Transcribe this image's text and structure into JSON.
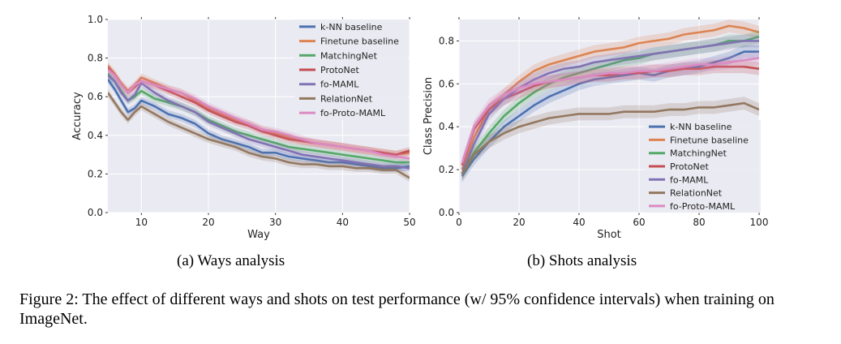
{
  "figure": {
    "caption": "Figure 2: The effect of different ways and shots on test performance (w/ 95% confidence intervals) when training on ImageNet."
  },
  "colors": {
    "k-NN baseline": "#4c72b0",
    "Finetune baseline": "#dd8452",
    "MatchingNet": "#55a868",
    "ProtoNet": "#c44e52",
    "fo-MAML": "#8172b3",
    "RelationNet": "#937860",
    "fo-Proto-MAML": "#da8bc3",
    "plot_bg": "#eaeaf2"
  },
  "chart_data": [
    {
      "type": "line",
      "subcaption": "(a)  Ways analysis",
      "xlabel": "Way",
      "ylabel": "Accuracy",
      "xlim": [
        5,
        50
      ],
      "ylim": [
        0,
        1.0
      ],
      "xticks": [
        10,
        20,
        30,
        40,
        50
      ],
      "yticks": [
        0.0,
        0.2,
        0.4,
        0.6,
        0.8,
        1.0
      ],
      "ytick_labels": [
        "0.0",
        "0.2",
        "0.4",
        "0.6",
        "0.8",
        "1.0"
      ],
      "grid": true,
      "confidence_band": 0.02,
      "legend_position": "top-right",
      "series": [
        {
          "name": "k-NN baseline",
          "x": [
            5,
            6,
            7,
            8,
            9,
            10,
            12,
            14,
            16,
            18,
            20,
            22,
            24,
            26,
            28,
            30,
            32,
            34,
            36,
            38,
            40,
            42,
            44,
            46,
            48,
            50
          ],
          "y": [
            0.69,
            0.64,
            0.58,
            0.52,
            0.54,
            0.58,
            0.55,
            0.51,
            0.49,
            0.46,
            0.41,
            0.38,
            0.36,
            0.34,
            0.31,
            0.31,
            0.29,
            0.28,
            0.27,
            0.26,
            0.26,
            0.25,
            0.24,
            0.23,
            0.23,
            0.24
          ]
        },
        {
          "name": "Finetune baseline",
          "x": [
            5,
            6,
            7,
            8,
            9,
            10,
            12,
            14,
            16,
            18,
            20,
            22,
            24,
            26,
            28,
            30,
            32,
            34,
            36,
            38,
            40,
            42,
            44,
            46,
            48,
            50
          ],
          "y": [
            0.76,
            0.72,
            0.67,
            0.63,
            0.66,
            0.7,
            0.67,
            0.64,
            0.62,
            0.58,
            0.54,
            0.51,
            0.48,
            0.46,
            0.43,
            0.41,
            0.39,
            0.37,
            0.36,
            0.35,
            0.34,
            0.33,
            0.32,
            0.31,
            0.3,
            0.31
          ]
        },
        {
          "name": "MatchingNet",
          "x": [
            5,
            6,
            7,
            8,
            9,
            10,
            12,
            14,
            16,
            18,
            20,
            22,
            24,
            26,
            28,
            30,
            32,
            34,
            36,
            38,
            40,
            42,
            44,
            46,
            48,
            50
          ],
          "y": [
            0.72,
            0.68,
            0.63,
            0.58,
            0.6,
            0.63,
            0.59,
            0.57,
            0.55,
            0.52,
            0.48,
            0.45,
            0.42,
            0.4,
            0.38,
            0.36,
            0.34,
            0.33,
            0.32,
            0.31,
            0.3,
            0.29,
            0.28,
            0.27,
            0.26,
            0.26
          ]
        },
        {
          "name": "ProtoNet",
          "x": [
            5,
            6,
            7,
            8,
            9,
            10,
            12,
            14,
            16,
            18,
            20,
            22,
            24,
            26,
            28,
            30,
            32,
            34,
            36,
            38,
            40,
            42,
            44,
            46,
            48,
            50
          ],
          "y": [
            0.75,
            0.71,
            0.66,
            0.62,
            0.65,
            0.68,
            0.66,
            0.63,
            0.6,
            0.57,
            0.53,
            0.5,
            0.47,
            0.45,
            0.42,
            0.4,
            0.38,
            0.37,
            0.36,
            0.35,
            0.34,
            0.33,
            0.32,
            0.31,
            0.3,
            0.32
          ]
        },
        {
          "name": "fo-MAML",
          "x": [
            5,
            6,
            7,
            8,
            9,
            10,
            12,
            14,
            16,
            18,
            20,
            22,
            24,
            26,
            28,
            30,
            32,
            34,
            36,
            38,
            40,
            42,
            44,
            46,
            48,
            50
          ],
          "y": [
            0.71,
            0.68,
            0.62,
            0.58,
            0.61,
            0.67,
            0.62,
            0.58,
            0.55,
            0.52,
            0.47,
            0.44,
            0.41,
            0.38,
            0.36,
            0.34,
            0.32,
            0.3,
            0.29,
            0.28,
            0.27,
            0.26,
            0.25,
            0.24,
            0.24,
            0.23
          ]
        },
        {
          "name": "RelationNet",
          "x": [
            5,
            6,
            7,
            8,
            9,
            10,
            12,
            14,
            16,
            18,
            20,
            22,
            24,
            26,
            28,
            30,
            32,
            34,
            36,
            38,
            40,
            42,
            44,
            46,
            48,
            50
          ],
          "y": [
            0.62,
            0.57,
            0.52,
            0.48,
            0.52,
            0.55,
            0.51,
            0.47,
            0.44,
            0.41,
            0.38,
            0.36,
            0.34,
            0.31,
            0.29,
            0.28,
            0.26,
            0.25,
            0.25,
            0.24,
            0.24,
            0.23,
            0.23,
            0.22,
            0.22,
            0.18
          ]
        },
        {
          "name": "fo-Proto-MAML",
          "x": [
            5,
            6,
            7,
            8,
            9,
            10,
            12,
            14,
            16,
            18,
            20,
            22,
            24,
            26,
            28,
            30,
            32,
            34,
            36,
            38,
            40,
            42,
            44,
            46,
            48,
            50
          ],
          "y": [
            0.74,
            0.71,
            0.66,
            0.62,
            0.66,
            0.68,
            0.66,
            0.64,
            0.62,
            0.59,
            0.55,
            0.52,
            0.49,
            0.46,
            0.43,
            0.42,
            0.4,
            0.38,
            0.36,
            0.35,
            0.34,
            0.33,
            0.32,
            0.3,
            0.29,
            0.28
          ]
        }
      ]
    },
    {
      "type": "line",
      "subcaption": "(b)  Shots analysis",
      "xlabel": "Shot",
      "ylabel": "Class Precision",
      "xlim": [
        0,
        100
      ],
      "ylim": [
        0,
        0.9
      ],
      "xticks": [
        0,
        20,
        40,
        60,
        80,
        100
      ],
      "yticks": [
        0.0,
        0.2,
        0.4,
        0.6,
        0.8
      ],
      "ytick_labels": [
        "0.0",
        "0.2",
        "0.4",
        "0.6",
        "0.8"
      ],
      "grid": true,
      "confidence_band": 0.03,
      "legend_position": "bottom-right",
      "series": [
        {
          "name": "k-NN baseline",
          "x": [
            1,
            5,
            10,
            15,
            20,
            25,
            30,
            35,
            40,
            45,
            50,
            55,
            60,
            65,
            70,
            75,
            80,
            85,
            90,
            95,
            100
          ],
          "y": [
            0.17,
            0.25,
            0.33,
            0.4,
            0.45,
            0.5,
            0.54,
            0.57,
            0.6,
            0.62,
            0.63,
            0.64,
            0.65,
            0.64,
            0.66,
            0.67,
            0.68,
            0.7,
            0.72,
            0.75,
            0.75
          ]
        },
        {
          "name": "Finetune baseline",
          "x": [
            1,
            5,
            10,
            15,
            20,
            25,
            30,
            35,
            40,
            45,
            50,
            55,
            60,
            65,
            70,
            75,
            80,
            85,
            90,
            95,
            100
          ],
          "y": [
            0.2,
            0.35,
            0.48,
            0.55,
            0.61,
            0.66,
            0.69,
            0.71,
            0.73,
            0.75,
            0.76,
            0.77,
            0.79,
            0.8,
            0.81,
            0.83,
            0.84,
            0.85,
            0.87,
            0.86,
            0.84
          ]
        },
        {
          "name": "MatchingNet",
          "x": [
            1,
            5,
            10,
            15,
            20,
            25,
            30,
            35,
            40,
            45,
            50,
            55,
            60,
            65,
            70,
            75,
            80,
            85,
            90,
            95,
            100
          ],
          "y": [
            0.18,
            0.28,
            0.37,
            0.45,
            0.51,
            0.56,
            0.6,
            0.63,
            0.65,
            0.67,
            0.69,
            0.71,
            0.72,
            0.74,
            0.75,
            0.76,
            0.77,
            0.78,
            0.8,
            0.8,
            0.82
          ]
        },
        {
          "name": "ProtoNet",
          "x": [
            1,
            5,
            10,
            15,
            20,
            25,
            30,
            35,
            40,
            45,
            50,
            55,
            60,
            65,
            70,
            75,
            80,
            85,
            90,
            95,
            100
          ],
          "y": [
            0.22,
            0.39,
            0.48,
            0.53,
            0.56,
            0.59,
            0.61,
            0.62,
            0.63,
            0.64,
            0.64,
            0.65,
            0.65,
            0.66,
            0.66,
            0.67,
            0.67,
            0.68,
            0.68,
            0.68,
            0.67
          ]
        },
        {
          "name": "fo-MAML",
          "x": [
            1,
            5,
            10,
            15,
            20,
            25,
            30,
            35,
            40,
            45,
            50,
            55,
            60,
            65,
            70,
            75,
            80,
            85,
            90,
            95,
            100
          ],
          "y": [
            0.18,
            0.32,
            0.46,
            0.53,
            0.58,
            0.62,
            0.65,
            0.67,
            0.68,
            0.7,
            0.71,
            0.72,
            0.73,
            0.74,
            0.75,
            0.76,
            0.77,
            0.78,
            0.79,
            0.8,
            0.8
          ]
        },
        {
          "name": "RelationNet",
          "x": [
            1,
            5,
            10,
            15,
            20,
            25,
            30,
            35,
            40,
            45,
            50,
            55,
            60,
            65,
            70,
            75,
            80,
            85,
            90,
            95,
            100
          ],
          "y": [
            0.18,
            0.27,
            0.33,
            0.37,
            0.4,
            0.42,
            0.44,
            0.45,
            0.46,
            0.46,
            0.46,
            0.47,
            0.47,
            0.47,
            0.48,
            0.48,
            0.49,
            0.49,
            0.5,
            0.51,
            0.48
          ]
        },
        {
          "name": "fo-Proto-MAML",
          "x": [
            1,
            5,
            10,
            15,
            20,
            25,
            30,
            35,
            40,
            45,
            50,
            55,
            60,
            65,
            70,
            75,
            80,
            85,
            90,
            95,
            100
          ],
          "y": [
            0.23,
            0.4,
            0.5,
            0.55,
            0.58,
            0.6,
            0.61,
            0.62,
            0.63,
            0.64,
            0.65,
            0.65,
            0.66,
            0.66,
            0.67,
            0.68,
            0.69,
            0.69,
            0.7,
            0.71,
            0.72
          ]
        }
      ]
    }
  ]
}
